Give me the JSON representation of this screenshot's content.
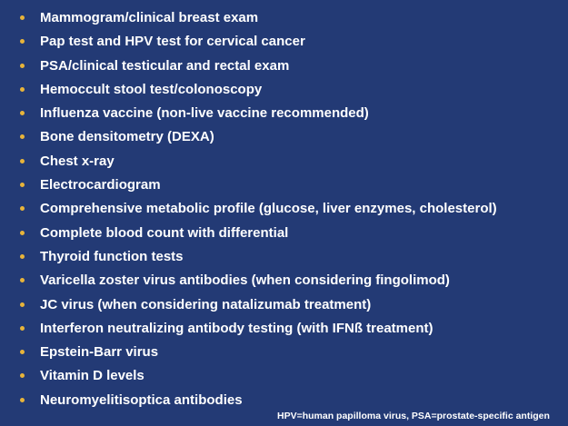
{
  "slide": {
    "background_color": "#233a75",
    "bullet_color": "#e8b43a",
    "items": [
      "Mammogram/clinical breast exam",
      "Pap test and HPV test for cervical cancer",
      "PSA/clinical testicular and rectal exam",
      "Hemoccult stool test/colonoscopy",
      "Influenza vaccine (non-live vaccine recommended)",
      "Bone densitometry (DEXA)",
      "Chest x-ray",
      "Electrocardiogram",
      "Comprehensive metabolic profile (glucose, liver enzymes, cholesterol)",
      "Complete blood count with differential",
      "Thyroid function tests",
      "Varicella zoster virus antibodies (when considering fingolimod)",
      "JC virus (when considering natalizumab treatment)",
      "Interferon neutralizing antibody testing (with IFNß treatment)",
      "Epstein-Barr virus",
      "Vitamin D levels",
      "Neuromyelitisoptica antibodies"
    ],
    "footnote": "HPV=human papilloma virus, PSA=prostate-specific antigen"
  }
}
